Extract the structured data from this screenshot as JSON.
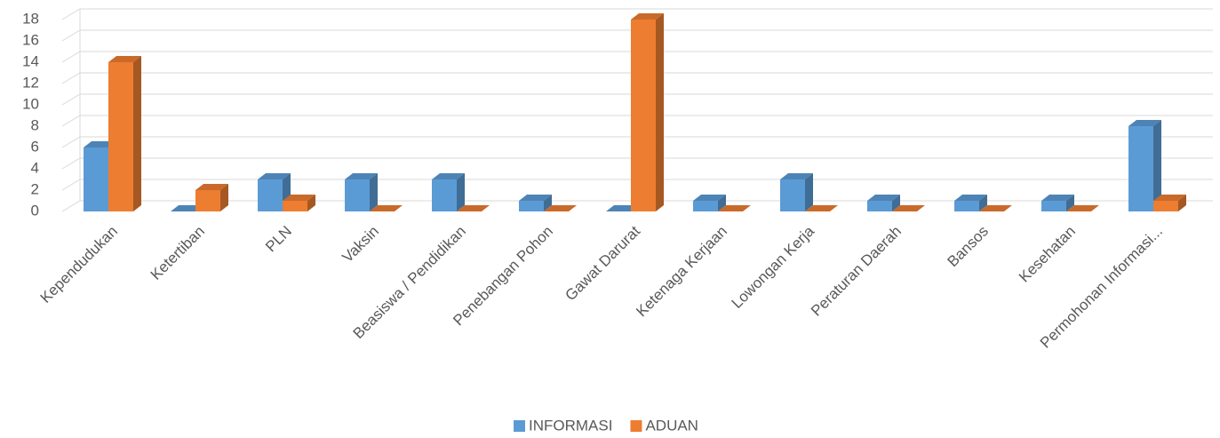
{
  "chart_data": {
    "type": "bar3d",
    "categories": [
      "Kependudukan",
      "Ketertiban",
      "PLN",
      "Vaksin",
      "Beasiswa / Pendidikan",
      "Penebangan Pohon",
      "Gawat Darurat",
      "Ketenaga Kerjaan",
      "Lowongan Kerja",
      "Peraturan Daerah",
      "Bansos",
      "Kesehatan",
      "Permohonan Informasi..."
    ],
    "series": [
      {
        "name": "INFORMASI",
        "color": "#5b9bd5",
        "values": [
          6,
          0,
          3,
          3,
          3,
          1,
          0,
          1,
          3,
          1,
          1,
          1,
          8
        ]
      },
      {
        "name": "ADUAN",
        "color": "#ed7d31",
        "values": [
          14,
          2,
          1,
          0,
          0,
          0,
          18,
          0,
          0,
          0,
          0,
          0,
          1
        ]
      }
    ],
    "ylim": [
      0,
      18
    ],
    "yticks": [
      0,
      2,
      4,
      6,
      8,
      10,
      12,
      14,
      16,
      18
    ],
    "grid": true,
    "legend": "bottom"
  }
}
